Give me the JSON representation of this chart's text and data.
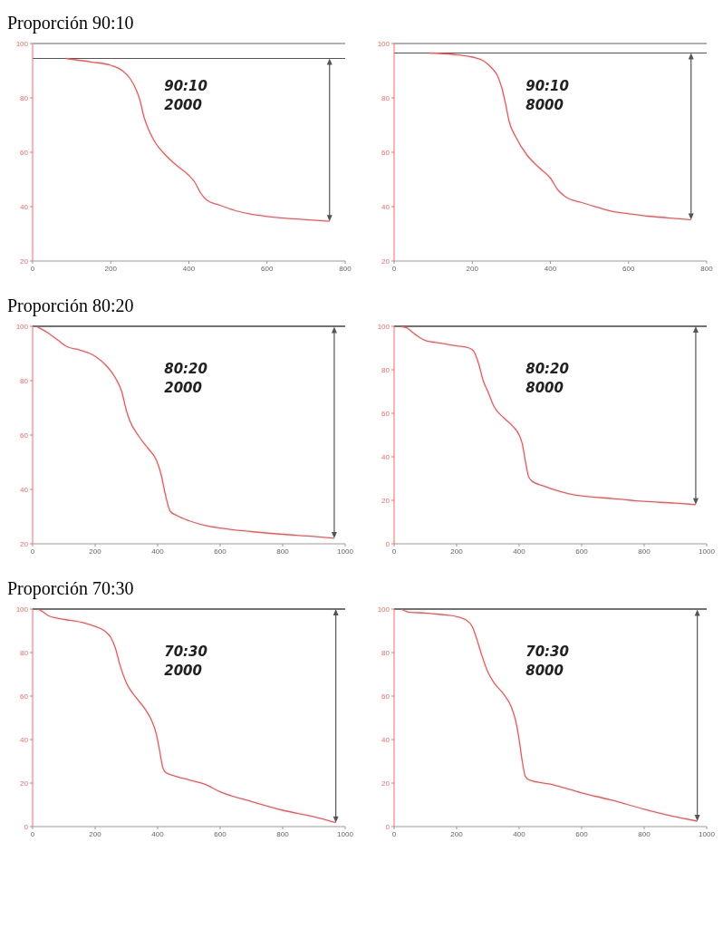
{
  "chart_data": [
    {
      "type": "line",
      "title": "Proporción 90:10",
      "annotations": [
        "90:10",
        "2000"
      ],
      "x": [
        85,
        150,
        200,
        230,
        250,
        265,
        275,
        285,
        295,
        310,
        340,
        370,
        400,
        415,
        430,
        445,
        480,
        520,
        560,
        600,
        650,
        700,
        760
      ],
      "series": [
        {
          "color": "#ff5050",
          "values": [
            94.5,
            93.2,
            92,
            90,
            87,
            83,
            79,
            73,
            69,
            64.5,
            59,
            55,
            51.5,
            49,
            45,
            42.5,
            40.5,
            38.5,
            37.2,
            36.4,
            35.7,
            35.2,
            34.6
          ]
        }
      ],
      "xlim": [
        0,
        800
      ],
      "xticks": [
        0,
        200,
        400,
        600,
        800
      ],
      "ylim": [
        20,
        100
      ],
      "yticks": [
        20,
        40,
        60,
        80,
        100
      ],
      "ref_lines": [
        {
          "axis": "y",
          "value": 94.5,
          "color": "#555555"
        }
      ],
      "grid": false,
      "legend": false,
      "marker": "none",
      "line_style": "solid"
    },
    {
      "type": "line",
      "annotations": [
        "90:10",
        "8000"
      ],
      "x": [
        90,
        150,
        200,
        230,
        250,
        265,
        275,
        285,
        295,
        310,
        340,
        370,
        400,
        420,
        440,
        480,
        520,
        560,
        600,
        650,
        700,
        760
      ],
      "series": [
        {
          "color": "#ff5050",
          "values": [
            96.5,
            96,
            95,
            93.5,
            91,
            88,
            84,
            78,
            71,
            66,
            59,
            54.5,
            50.5,
            46,
            43.5,
            41.5,
            39.8,
            38.2,
            37.4,
            36.5,
            35.9,
            35.2
          ]
        }
      ],
      "xlim": [
        0,
        800
      ],
      "xticks": [
        0,
        200,
        400,
        600,
        800
      ],
      "ylim": [
        20,
        100
      ],
      "yticks": [
        20,
        40,
        60,
        80,
        100
      ],
      "ref_lines": [
        {
          "axis": "y",
          "value": 96.5,
          "color": "#555555"
        }
      ],
      "grid": false,
      "legend": false,
      "marker": "none",
      "line_style": "solid"
    },
    {
      "type": "line",
      "title": "Proporción 80:20",
      "annotations": [
        "80:20",
        "2000"
      ],
      "x": [
        15,
        50,
        80,
        110,
        150,
        200,
        240,
        265,
        285,
        300,
        310,
        340,
        370,
        395,
        410,
        425,
        440,
        460,
        500,
        550,
        600,
        700,
        800,
        900,
        965
      ],
      "series": [
        {
          "color": "#ff5050",
          "values": [
            99.8,
            97.5,
            95,
            92.5,
            91.3,
            89,
            85,
            81,
            76,
            69,
            65.5,
            59.5,
            55,
            51,
            46,
            38,
            32,
            30.5,
            28.5,
            26.8,
            25.8,
            24.5,
            23.5,
            22.7,
            22
          ]
        }
      ],
      "xlim": [
        0,
        1000
      ],
      "xticks": [
        0,
        200,
        400,
        600,
        800,
        1000
      ],
      "ylim": [
        20,
        100
      ],
      "yticks": [
        20,
        40,
        60,
        80,
        100
      ],
      "ref_lines": [
        {
          "axis": "y",
          "value": 100,
          "color": "#333333"
        }
      ],
      "grid": false,
      "legend": false,
      "marker": "none",
      "line_style": "solid"
    },
    {
      "type": "line",
      "annotations": [
        "80:20",
        "8000"
      ],
      "x": [
        20,
        40,
        70,
        100,
        150,
        200,
        240,
        255,
        270,
        285,
        300,
        320,
        350,
        380,
        400,
        410,
        420,
        430,
        440,
        480,
        520,
        560,
        600,
        700,
        800,
        900,
        965
      ],
      "series": [
        {
          "color": "#ff5050",
          "values": [
            100,
            99.3,
            96,
            93.5,
            92.2,
            91,
            90,
            88.5,
            83,
            75,
            70,
            63,
            58,
            54,
            50,
            46,
            38,
            31,
            29,
            26.5,
            24.5,
            23,
            22,
            20.8,
            19.5,
            18.7,
            18
          ]
        }
      ],
      "xlim": [
        0,
        1000
      ],
      "xticks": [
        0,
        200,
        400,
        600,
        800,
        1000
      ],
      "ylim": [
        0,
        100
      ],
      "yticks": [
        0,
        20,
        40,
        60,
        80,
        100
      ],
      "ref_lines": [
        {
          "axis": "y",
          "value": 100,
          "color": "#333333"
        }
      ],
      "grid": false,
      "legend": false,
      "marker": "none",
      "line_style": "solid"
    },
    {
      "type": "line",
      "title": "Proporción 70:30",
      "annotations": [
        "70:30",
        "2000"
      ],
      "x": [
        15,
        30,
        50,
        80,
        120,
        160,
        200,
        230,
        250,
        265,
        280,
        300,
        330,
        360,
        380,
        395,
        405,
        415,
        425,
        450,
        500,
        550,
        600,
        700,
        800,
        900,
        970
      ],
      "series": [
        {
          "color": "#ff5050",
          "values": [
            100,
            99,
            97,
            95.8,
            94.8,
            93.8,
            92,
            90,
            87,
            82,
            74,
            66,
            59.5,
            54,
            49,
            43,
            36,
            28,
            25,
            23.5,
            21.5,
            19.5,
            16,
            11.5,
            7.5,
            4.5,
            1.8
          ]
        }
      ],
      "xlim": [
        0,
        1000
      ],
      "xticks": [
        0,
        200,
        400,
        600,
        800,
        1000
      ],
      "ylim": [
        0,
        100
      ],
      "yticks": [
        0,
        20,
        40,
        60,
        80,
        100
      ],
      "ref_lines": [
        {
          "axis": "y",
          "value": 100,
          "color": "#333333"
        }
      ],
      "grid": false,
      "legend": false,
      "marker": "none",
      "line_style": "solid"
    },
    {
      "type": "line",
      "annotations": [
        "70:30",
        "8000"
      ],
      "x": [
        25,
        50,
        100,
        150,
        200,
        230,
        250,
        265,
        280,
        300,
        320,
        350,
        375,
        390,
        400,
        410,
        420,
        435,
        500,
        600,
        700,
        800,
        900,
        970
      ],
      "series": [
        {
          "color": "#ff5050",
          "values": [
            99.8,
            98.5,
            98.2,
            97.5,
            96.5,
            95,
            92,
            86,
            79,
            71,
            66,
            61,
            55,
            48,
            40,
            30,
            23,
            21.3,
            19.5,
            15.5,
            12,
            8,
            4.5,
            2.5
          ]
        }
      ],
      "xlim": [
        0,
        1000
      ],
      "xticks": [
        0,
        200,
        400,
        600,
        800,
        1000
      ],
      "ylim": [
        0,
        100
      ],
      "yticks": [
        0,
        20,
        40,
        60,
        80,
        100
      ],
      "ref_lines": [
        {
          "axis": "y",
          "value": 100,
          "color": "#333333"
        }
      ],
      "grid": false,
      "legend": false,
      "marker": "none",
      "line_style": "solid"
    }
  ]
}
